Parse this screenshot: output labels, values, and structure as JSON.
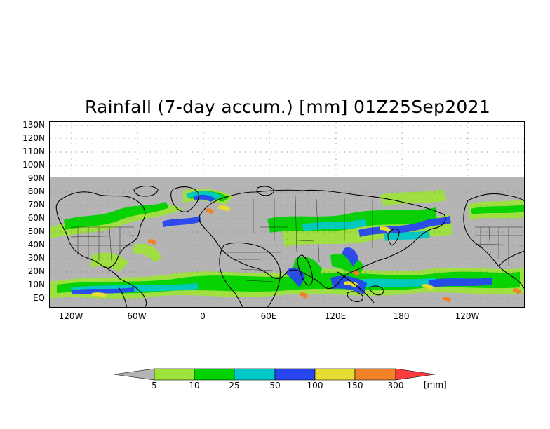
{
  "title": "Rainfall (7-day accum.) [mm] 01Z25Sep2021",
  "y_labels": [
    "130N",
    "120N",
    "110N",
    "100N",
    "90N",
    "80N",
    "70N",
    "60N",
    "50N",
    "40N",
    "30N",
    "20N",
    "10N",
    "EQ"
  ],
  "x_labels": [
    "120W",
    "60W",
    "0",
    "60E",
    "120E",
    "180",
    "120W"
  ],
  "legend": {
    "labels": [
      "5",
      "10",
      "25",
      "50",
      "100",
      "150",
      "300"
    ],
    "unit": "[mm]",
    "colors": {
      "below": "#b4b4b4",
      "c1": "#9ee23c",
      "c2": "#00d200",
      "c3": "#00c8c8",
      "c4": "#2846f0",
      "c5": "#e6dc32",
      "c6": "#f08228",
      "over": "#fa3c3c"
    }
  },
  "map": {
    "no_data_color": "#ffffff",
    "land_outline_color": "#000000",
    "grid_color": "#9a9a9a"
  }
}
